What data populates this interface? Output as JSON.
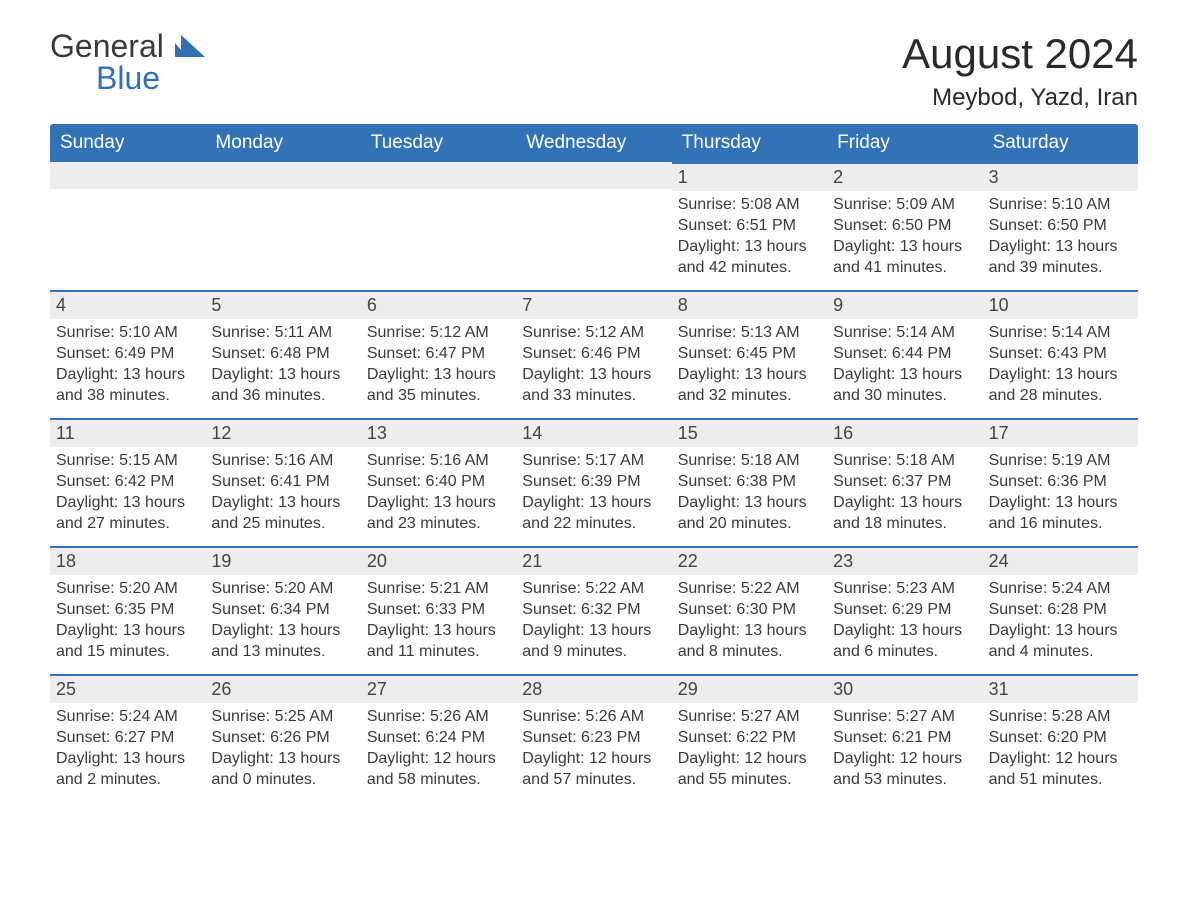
{
  "logo": {
    "text1": "General",
    "text2": "Blue"
  },
  "title": "August 2024",
  "location": "Meybod, Yazd, Iran",
  "colors": {
    "header_bg": "#3273b8",
    "header_text": "#ffffff",
    "day_stripe_bg": "#ededed",
    "day_stripe_border": "#3273b8",
    "body_text": "#3a3a3a",
    "background": "#ffffff"
  },
  "fonts": {
    "title_size_pt": 32,
    "location_size_pt": 18,
    "weekday_size_pt": 14,
    "body_size_pt": 12
  },
  "weekdays": [
    "Sunday",
    "Monday",
    "Tuesday",
    "Wednesday",
    "Thursday",
    "Friday",
    "Saturday"
  ],
  "weeks": [
    [
      null,
      null,
      null,
      null,
      {
        "n": "1",
        "sunrise": "Sunrise: 5:08 AM",
        "sunset": "Sunset: 6:51 PM",
        "daylight1": "Daylight: 13 hours",
        "daylight2": "and 42 minutes."
      },
      {
        "n": "2",
        "sunrise": "Sunrise: 5:09 AM",
        "sunset": "Sunset: 6:50 PM",
        "daylight1": "Daylight: 13 hours",
        "daylight2": "and 41 minutes."
      },
      {
        "n": "3",
        "sunrise": "Sunrise: 5:10 AM",
        "sunset": "Sunset: 6:50 PM",
        "daylight1": "Daylight: 13 hours",
        "daylight2": "and 39 minutes."
      }
    ],
    [
      {
        "n": "4",
        "sunrise": "Sunrise: 5:10 AM",
        "sunset": "Sunset: 6:49 PM",
        "daylight1": "Daylight: 13 hours",
        "daylight2": "and 38 minutes."
      },
      {
        "n": "5",
        "sunrise": "Sunrise: 5:11 AM",
        "sunset": "Sunset: 6:48 PM",
        "daylight1": "Daylight: 13 hours",
        "daylight2": "and 36 minutes."
      },
      {
        "n": "6",
        "sunrise": "Sunrise: 5:12 AM",
        "sunset": "Sunset: 6:47 PM",
        "daylight1": "Daylight: 13 hours",
        "daylight2": "and 35 minutes."
      },
      {
        "n": "7",
        "sunrise": "Sunrise: 5:12 AM",
        "sunset": "Sunset: 6:46 PM",
        "daylight1": "Daylight: 13 hours",
        "daylight2": "and 33 minutes."
      },
      {
        "n": "8",
        "sunrise": "Sunrise: 5:13 AM",
        "sunset": "Sunset: 6:45 PM",
        "daylight1": "Daylight: 13 hours",
        "daylight2": "and 32 minutes."
      },
      {
        "n": "9",
        "sunrise": "Sunrise: 5:14 AM",
        "sunset": "Sunset: 6:44 PM",
        "daylight1": "Daylight: 13 hours",
        "daylight2": "and 30 minutes."
      },
      {
        "n": "10",
        "sunrise": "Sunrise: 5:14 AM",
        "sunset": "Sunset: 6:43 PM",
        "daylight1": "Daylight: 13 hours",
        "daylight2": "and 28 minutes."
      }
    ],
    [
      {
        "n": "11",
        "sunrise": "Sunrise: 5:15 AM",
        "sunset": "Sunset: 6:42 PM",
        "daylight1": "Daylight: 13 hours",
        "daylight2": "and 27 minutes."
      },
      {
        "n": "12",
        "sunrise": "Sunrise: 5:16 AM",
        "sunset": "Sunset: 6:41 PM",
        "daylight1": "Daylight: 13 hours",
        "daylight2": "and 25 minutes."
      },
      {
        "n": "13",
        "sunrise": "Sunrise: 5:16 AM",
        "sunset": "Sunset: 6:40 PM",
        "daylight1": "Daylight: 13 hours",
        "daylight2": "and 23 minutes."
      },
      {
        "n": "14",
        "sunrise": "Sunrise: 5:17 AM",
        "sunset": "Sunset: 6:39 PM",
        "daylight1": "Daylight: 13 hours",
        "daylight2": "and 22 minutes."
      },
      {
        "n": "15",
        "sunrise": "Sunrise: 5:18 AM",
        "sunset": "Sunset: 6:38 PM",
        "daylight1": "Daylight: 13 hours",
        "daylight2": "and 20 minutes."
      },
      {
        "n": "16",
        "sunrise": "Sunrise: 5:18 AM",
        "sunset": "Sunset: 6:37 PM",
        "daylight1": "Daylight: 13 hours",
        "daylight2": "and 18 minutes."
      },
      {
        "n": "17",
        "sunrise": "Sunrise: 5:19 AM",
        "sunset": "Sunset: 6:36 PM",
        "daylight1": "Daylight: 13 hours",
        "daylight2": "and 16 minutes."
      }
    ],
    [
      {
        "n": "18",
        "sunrise": "Sunrise: 5:20 AM",
        "sunset": "Sunset: 6:35 PM",
        "daylight1": "Daylight: 13 hours",
        "daylight2": "and 15 minutes."
      },
      {
        "n": "19",
        "sunrise": "Sunrise: 5:20 AM",
        "sunset": "Sunset: 6:34 PM",
        "daylight1": "Daylight: 13 hours",
        "daylight2": "and 13 minutes."
      },
      {
        "n": "20",
        "sunrise": "Sunrise: 5:21 AM",
        "sunset": "Sunset: 6:33 PM",
        "daylight1": "Daylight: 13 hours",
        "daylight2": "and 11 minutes."
      },
      {
        "n": "21",
        "sunrise": "Sunrise: 5:22 AM",
        "sunset": "Sunset: 6:32 PM",
        "daylight1": "Daylight: 13 hours",
        "daylight2": "and 9 minutes."
      },
      {
        "n": "22",
        "sunrise": "Sunrise: 5:22 AM",
        "sunset": "Sunset: 6:30 PM",
        "daylight1": "Daylight: 13 hours",
        "daylight2": "and 8 minutes."
      },
      {
        "n": "23",
        "sunrise": "Sunrise: 5:23 AM",
        "sunset": "Sunset: 6:29 PM",
        "daylight1": "Daylight: 13 hours",
        "daylight2": "and 6 minutes."
      },
      {
        "n": "24",
        "sunrise": "Sunrise: 5:24 AM",
        "sunset": "Sunset: 6:28 PM",
        "daylight1": "Daylight: 13 hours",
        "daylight2": "and 4 minutes."
      }
    ],
    [
      {
        "n": "25",
        "sunrise": "Sunrise: 5:24 AM",
        "sunset": "Sunset: 6:27 PM",
        "daylight1": "Daylight: 13 hours",
        "daylight2": "and 2 minutes."
      },
      {
        "n": "26",
        "sunrise": "Sunrise: 5:25 AM",
        "sunset": "Sunset: 6:26 PM",
        "daylight1": "Daylight: 13 hours",
        "daylight2": "and 0 minutes."
      },
      {
        "n": "27",
        "sunrise": "Sunrise: 5:26 AM",
        "sunset": "Sunset: 6:24 PM",
        "daylight1": "Daylight: 12 hours",
        "daylight2": "and 58 minutes."
      },
      {
        "n": "28",
        "sunrise": "Sunrise: 5:26 AM",
        "sunset": "Sunset: 6:23 PM",
        "daylight1": "Daylight: 12 hours",
        "daylight2": "and 57 minutes."
      },
      {
        "n": "29",
        "sunrise": "Sunrise: 5:27 AM",
        "sunset": "Sunset: 6:22 PM",
        "daylight1": "Daylight: 12 hours",
        "daylight2": "and 55 minutes."
      },
      {
        "n": "30",
        "sunrise": "Sunrise: 5:27 AM",
        "sunset": "Sunset: 6:21 PM",
        "daylight1": "Daylight: 12 hours",
        "daylight2": "and 53 minutes."
      },
      {
        "n": "31",
        "sunrise": "Sunrise: 5:28 AM",
        "sunset": "Sunset: 6:20 PM",
        "daylight1": "Daylight: 12 hours",
        "daylight2": "and 51 minutes."
      }
    ]
  ]
}
